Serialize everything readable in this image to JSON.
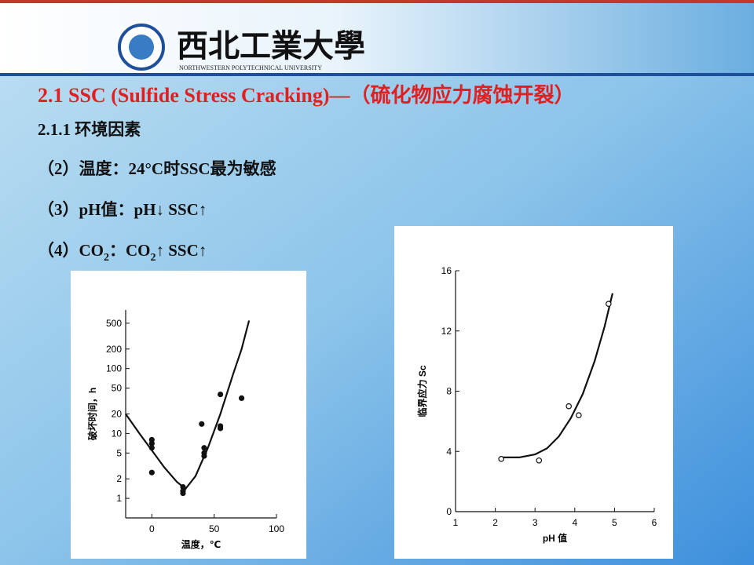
{
  "header": {
    "university_cn": "西北工業大學",
    "university_en": "NORTHWESTERN POLYTECHNICAL UNIVERSITY"
  },
  "slide": {
    "title": "2.1  SSC (Sulfide Stress Cracking)—（硫化物应力腐蚀开裂）",
    "subtitle": "2.1.1 环境因素",
    "items": [
      [
        "（2）温度：24°C时SSC最为敏感"
      ],
      [
        "（3）pH值：pH↓ SSC↑"
      ],
      [
        "（4）CO",
        "2",
        "：CO",
        "2",
        "↑ SSC↑"
      ]
    ]
  },
  "chart_data": [
    {
      "type": "scatter",
      "xlabel": "温度，℃",
      "ylabel": "破坏时间，h",
      "ylog": true,
      "marker": "filled",
      "xlim": [
        -21,
        100
      ],
      "xticks": [
        0,
        50,
        100
      ],
      "ylim": [
        0.5,
        800
      ],
      "yticks": [
        1,
        2,
        5,
        10,
        20,
        50,
        100,
        200,
        500
      ],
      "points": {
        "x": [
          0,
          0,
          0,
          0,
          25,
          25,
          25,
          40,
          42,
          42,
          42,
          55,
          55,
          55,
          72
        ],
        "values": [
          8,
          7,
          6,
          2.5,
          1.5,
          1.3,
          1.2,
          14,
          6,
          5,
          4.5,
          40,
          13,
          12,
          35
        ]
      },
      "curve": {
        "x": [
          -21,
          -10,
          0,
          10,
          20,
          27,
          35,
          45,
          55,
          65,
          72,
          78
        ],
        "values": [
          20,
          10,
          5.5,
          3,
          1.8,
          1.4,
          2.2,
          6,
          20,
          80,
          200,
          550
        ]
      },
      "color": "#111111"
    },
    {
      "type": "scatter",
      "xlabel": "pH 值",
      "ylabel": "临界应力 Sc",
      "ylog": false,
      "marker": "open",
      "xlim": [
        1,
        6
      ],
      "xticks": [
        1,
        2,
        3,
        4,
        5,
        6
      ],
      "ylim": [
        0,
        16
      ],
      "yticks": [
        0,
        4,
        8,
        12,
        16
      ],
      "points": {
        "x": [
          2.15,
          3.1,
          3.85,
          4.1,
          4.85
        ],
        "values": [
          3.5,
          3.4,
          7,
          6.4,
          13.8
        ]
      },
      "curve": {
        "x": [
          2.2,
          2.6,
          3.0,
          3.3,
          3.6,
          3.9,
          4.2,
          4.5,
          4.75,
          4.95
        ],
        "values": [
          3.6,
          3.6,
          3.8,
          4.2,
          5,
          6.2,
          7.8,
          10,
          12.3,
          14.5
        ]
      },
      "color": "#111111"
    }
  ]
}
